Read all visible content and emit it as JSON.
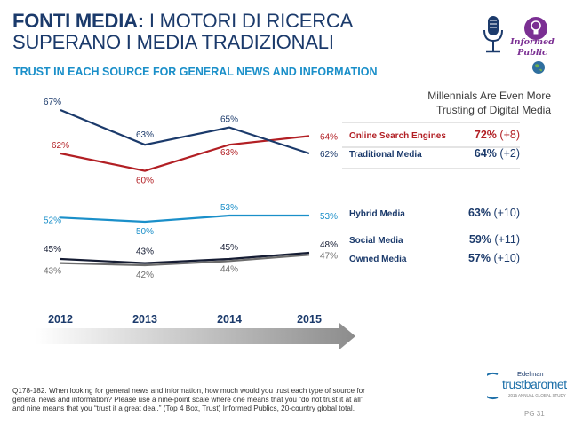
{
  "header": {
    "title_bold": "FONTI MEDIA:",
    "title_rest": " I MOTORI DI RICERCA SUPERANO I MEDIA TRADIZIONALI",
    "subtitle": "TRUST IN EACH SOURCE FOR GENERAL NEWS AND INFORMATION",
    "logo_text": "Informed Public"
  },
  "millennials_note": "Millennials Are Even More Trusting of Digital Media",
  "colors": {
    "online_search": "#b21f24",
    "traditional": "#1b3a6b",
    "hybrid": "#1a8fc9",
    "social": "#151c33",
    "owned": "#6d6d6d",
    "title": "#1b3a6b",
    "accent_purple": "#7b2f93"
  },
  "chart_data": [
    {
      "type": "line",
      "x": [
        "2012",
        "2013",
        "2014",
        "2015"
      ],
      "series": [
        {
          "name": "Online Search Engines",
          "values": [
            62,
            60,
            63,
            64
          ],
          "millennials": "72%",
          "millennials_change": "(+8)"
        },
        {
          "name": "Traditional Media",
          "values": [
            67,
            63,
            65,
            62
          ],
          "millennials": "64%",
          "millennials_change": "(+2)"
        }
      ]
    },
    {
      "type": "line",
      "x": [
        "2012",
        "2013",
        "2014",
        "2015"
      ],
      "series": [
        {
          "name": "Hybrid Media",
          "values": [
            52,
            50,
            53,
            53
          ],
          "millennials": "63%",
          "millennials_change": "(+10)"
        }
      ]
    },
    {
      "type": "line",
      "x": [
        "2012",
        "2013",
        "2014",
        "2015"
      ],
      "series": [
        {
          "name": "Social Media",
          "values": [
            45,
            43,
            45,
            48
          ],
          "millennials": "59%",
          "millennials_change": "(+11)"
        },
        {
          "name": "Owned Media",
          "values": [
            43,
            42,
            44,
            47
          ],
          "millennials": "57%",
          "millennials_change": "(+10)"
        }
      ]
    }
  ],
  "footnote": "Q178-182. When looking for general news and information, how much would you trust each type of source for general news and information? Please use a nine-point scale where one means that you “do not trust it at all” and nine means that you “trust it a great deal.” (Top 4 Box, Trust) Informed Publics, 20-country global total.",
  "branding": {
    "edelman": "Edelman",
    "trustbarometer": "trustbarometer",
    "tagline": "2015 ANNUAL GLOBAL STUDY"
  },
  "page": "PG 31"
}
